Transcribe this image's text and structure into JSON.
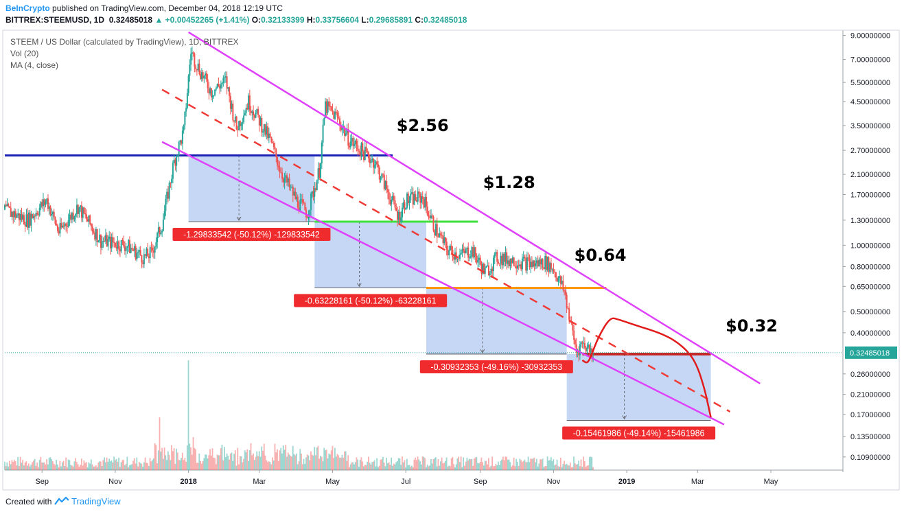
{
  "header": {
    "brand": "BeInCrypto",
    "published": "published on TradingView.com, December 04, 2018 12:19 UTC",
    "symbol": "BITTREX:STEEMUSD, 1D",
    "last": "0.32485018",
    "change_arrow": "▲",
    "change": "+0.00452265 (+1.41%)",
    "o_label": "O:",
    "o": "0.32133399",
    "h_label": "H:",
    "h": "0.33756604",
    "l_label": "L:",
    "l": "0.29685891",
    "c_label": "C:",
    "c": "0.32485018"
  },
  "legend": {
    "title": "STEEM / US Dollar (calculated by TradingView), 1D, BITTREX",
    "vol": "Vol (20)",
    "ma": "MA (4, close)"
  },
  "footer": {
    "created_with": "Created with",
    "brand": "TradingView",
    "logo_icon": "tradingview-logo-icon"
  },
  "colors": {
    "up": "#26a69a",
    "down": "#ef5350",
    "channel": "#e040fb",
    "midline": "#ef3a35",
    "blue_line": "#1a1fb5",
    "green_line": "#3de03d",
    "orange_line": "#ff9800",
    "box": "#bcd0f3",
    "label_bg": "#ef2b2d",
    "projection": "#e11b1b",
    "last_price_bg": "#26a69a"
  },
  "chart_data": {
    "type": "candlestick",
    "title": "STEEM / US Dollar (calculated by TradingView), 1D, BITTREX",
    "y_scale": "log",
    "y_range": [
      0.095,
      9.5
    ],
    "x_range": [
      "2017-08-01",
      "2019-06-30"
    ],
    "y_ticks": [
      "9.00000000",
      "7.00000000",
      "5.50000000",
      "4.50000000",
      "3.50000000",
      "2.70000000",
      "2.10000000",
      "1.70000000",
      "1.30000000",
      "1.00000000",
      "0.80000000",
      "0.65000000",
      "0.50000000",
      "0.40000000",
      "0.32485018",
      "0.26000000",
      "0.21000000",
      "0.17000000",
      "0.13500000",
      "0.10900000"
    ],
    "x_ticks": [
      {
        "label": "Sep",
        "date": "2017-09-01",
        "bold": false
      },
      {
        "label": "Nov",
        "date": "2017-11-01",
        "bold": false
      },
      {
        "label": "2018",
        "date": "2018-01-01",
        "bold": true
      },
      {
        "label": "Mar",
        "date": "2018-03-01",
        "bold": false
      },
      {
        "label": "May",
        "date": "2018-05-01",
        "bold": false
      },
      {
        "label": "Jul",
        "date": "2018-07-01",
        "bold": false
      },
      {
        "label": "Sep",
        "date": "2018-09-01",
        "bold": false
      },
      {
        "label": "Nov",
        "date": "2018-11-01",
        "bold": false
      },
      {
        "label": "2019",
        "date": "2019-01-01",
        "bold": true
      },
      {
        "label": "Mar",
        "date": "2019-03-01",
        "bold": false
      },
      {
        "label": "May",
        "date": "2019-05-01",
        "bold": false
      }
    ],
    "last_price": {
      "value": 0.32485018,
      "label": "0.32485018"
    },
    "price_path": [
      [
        "2017-08-01",
        1.45
      ],
      [
        "2017-08-20",
        1.3
      ],
      [
        "2017-09-05",
        1.6
      ],
      [
        "2017-09-15",
        1.15
      ],
      [
        "2017-10-01",
        1.5
      ],
      [
        "2017-10-20",
        1.05
      ],
      [
        "2017-11-10",
        1.0
      ],
      [
        "2017-11-25",
        0.88
      ],
      [
        "2017-12-01",
        0.92
      ],
      [
        "2017-12-10",
        1.25
      ],
      [
        "2017-12-20",
        2.4
      ],
      [
        "2017-12-28",
        3.3
      ],
      [
        "2018-01-03",
        7.6
      ],
      [
        "2018-01-10",
        6.3
      ],
      [
        "2018-01-20",
        5.0
      ],
      [
        "2018-02-01",
        5.6
      ],
      [
        "2018-02-10",
        3.4
      ],
      [
        "2018-02-20",
        4.5
      ],
      [
        "2018-03-01",
        3.7
      ],
      [
        "2018-03-10",
        3.0
      ],
      [
        "2018-03-20",
        2.1
      ],
      [
        "2018-04-01",
        1.6
      ],
      [
        "2018-04-10",
        1.4
      ],
      [
        "2018-04-20",
        2.2
      ],
      [
        "2018-04-25",
        4.3
      ],
      [
        "2018-05-05",
        3.8
      ],
      [
        "2018-05-15",
        3.0
      ],
      [
        "2018-05-25",
        2.7
      ],
      [
        "2018-06-05",
        2.4
      ],
      [
        "2018-06-15",
        1.8
      ],
      [
        "2018-06-25",
        1.35
      ],
      [
        "2018-07-01",
        1.6
      ],
      [
        "2018-07-15",
        1.65
      ],
      [
        "2018-07-25",
        1.2
      ],
      [
        "2018-08-05",
        0.95
      ],
      [
        "2018-08-15",
        0.9
      ],
      [
        "2018-08-25",
        0.95
      ],
      [
        "2018-09-05",
        0.75
      ],
      [
        "2018-09-15",
        0.88
      ],
      [
        "2018-10-01",
        0.85
      ],
      [
        "2018-10-15",
        0.82
      ],
      [
        "2018-10-25",
        0.84
      ],
      [
        "2018-11-01",
        0.78
      ],
      [
        "2018-11-10",
        0.62
      ],
      [
        "2018-11-15",
        0.45
      ],
      [
        "2018-11-20",
        0.33
      ],
      [
        "2018-11-25",
        0.36
      ],
      [
        "2018-12-04",
        0.325
      ]
    ],
    "volume_spikes": [
      [
        "2017-12-08",
        0.48
      ],
      [
        "2017-12-20",
        0.2
      ],
      [
        "2018-01-01",
        1.0
      ],
      [
        "2018-01-05",
        0.3
      ],
      [
        "2018-02-05",
        0.15
      ],
      [
        "2018-04-25",
        0.18
      ],
      [
        "2018-05-01",
        0.22
      ]
    ],
    "drawings": {
      "channel_upper": [
        [
          "2018-01-01",
          9.3
        ],
        [
          "2019-04-22",
          0.235
        ]
      ],
      "channel_lower": [
        [
          "2017-12-10",
          2.95
        ],
        [
          "2019-03-23",
          0.153
        ]
      ],
      "midline": [
        [
          "2017-12-10",
          5.1
        ],
        [
          "2019-03-28",
          0.175
        ]
      ],
      "blue_line": {
        "from": "2017-08-01",
        "to": "2018-06-20",
        "price": 2.56
      },
      "green_line": {
        "from": "2018-04-16",
        "to": "2018-08-30",
        "price": 1.28
      },
      "orange_line": {
        "from": "2018-07-18",
        "to": "2018-12-15",
        "price": 0.64
      },
      "red_line": {
        "from": "2018-11-25",
        "to": "2019-03-12",
        "price": 0.32
      },
      "boxes": [
        {
          "from": "2018-01-01",
          "to": "2018-04-16",
          "top": 2.56,
          "bottom": 1.28,
          "label": "-1.29833542 (-50.12%) -129833542"
        },
        {
          "from": "2018-04-16",
          "to": "2018-07-18",
          "top": 1.28,
          "bottom": 0.64,
          "label": "-0.63228161 (-50.12%) -63228161"
        },
        {
          "from": "2018-07-18",
          "to": "2018-11-12",
          "top": 0.64,
          "bottom": 0.32,
          "label": "-0.30932353 (-49.16%) -30932353"
        },
        {
          "from": "2018-11-12",
          "to": "2019-03-12",
          "top": 0.32,
          "bottom": 0.16,
          "label": "-0.15461986 (-49.14%) -15461986"
        }
      ],
      "projection": [
        [
          "2018-11-25",
          0.3
        ],
        [
          "2018-11-29",
          0.29
        ],
        [
          "2018-12-02",
          0.31
        ],
        [
          "2018-12-08",
          0.38
        ],
        [
          "2018-12-18",
          0.47
        ],
        [
          "2018-12-25",
          0.46
        ],
        [
          "2019-01-10",
          0.43
        ],
        [
          "2019-01-28",
          0.4
        ],
        [
          "2019-02-10",
          0.37
        ],
        [
          "2019-02-22",
          0.325
        ],
        [
          "2019-03-01",
          0.28
        ],
        [
          "2019-03-07",
          0.22
        ],
        [
          "2019-03-10",
          0.185
        ],
        [
          "2019-03-12",
          0.165
        ]
      ],
      "targets": [
        {
          "text": "$2.56",
          "date": "2018-07-15",
          "price": 3.3
        },
        {
          "text": "$1.28",
          "date": "2018-09-25",
          "price": 1.82
        },
        {
          "text": "$0.64",
          "date": "2018-12-10",
          "price": 0.85
        },
        {
          "text": "$0.32",
          "date": "2019-04-15",
          "price": 0.405
        }
      ]
    }
  }
}
